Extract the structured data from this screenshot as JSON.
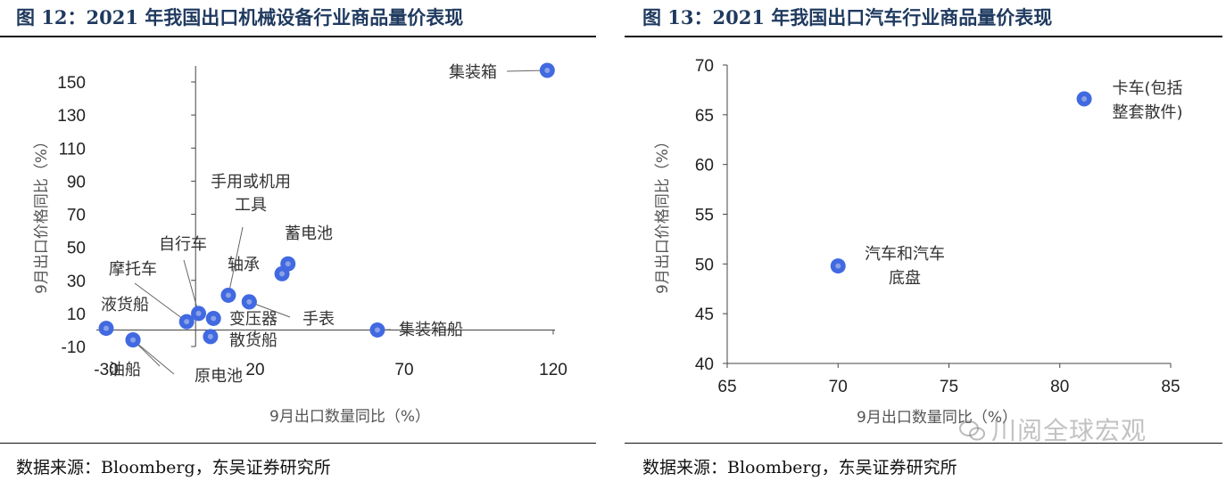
{
  "left": {
    "title": "图 12：2021 年我国出口机械设备行业商品量价表现",
    "source_prefix": "数据来源：",
    "source_text": "Bloomberg，东吴证券研究所"
  },
  "right": {
    "title": "图 13：2021 年我国出口汽车行业商品量价表现",
    "source_prefix": "数据来源：",
    "source_text": "Bloomberg，东吴证券研究所"
  },
  "watermark": "川阅全球宏观",
  "colors": {
    "point": "#4169e1",
    "point_core": "#8aa2e6",
    "axis": "#444444",
    "title": "#1f3a5f"
  },
  "chart_data": [
    {
      "type": "scatter",
      "title": "图 12：2021 年我国出口机械设备行业商品量价表现",
      "xlabel": "9月出口数量同比（%）",
      "ylabel": "9月出口价格同比（%）",
      "xlim": [
        -30,
        120
      ],
      "ylim": [
        -10,
        150
      ],
      "x_ticks": [
        -30,
        20,
        70,
        120
      ],
      "y_ticks": [
        -10,
        10,
        30,
        50,
        70,
        90,
        110,
        130,
        150
      ],
      "grid": false,
      "points": [
        {
          "label": "集装箱",
          "x": 118,
          "y": 157
        },
        {
          "label": "蓄电池",
          "x": 31,
          "y": 40
        },
        {
          "label": "",
          "x": 29,
          "y": 34
        },
        {
          "label": "手用或机用工具",
          "x": 11,
          "y": 21
        },
        {
          "label": "轴承",
          "x": 18,
          "y": 17
        },
        {
          "label": "自行车",
          "x": 1,
          "y": 10
        },
        {
          "label": "摩托车",
          "x": -3,
          "y": 5
        },
        {
          "label": "变压器",
          "x": 6,
          "y": 7
        },
        {
          "label": "手表",
          "x": 18,
          "y": 17
        },
        {
          "label": "液货船",
          "x": -30,
          "y": 1
        },
        {
          "label": "集装箱船",
          "x": 61,
          "y": 0
        },
        {
          "label": "散货船",
          "x": 5,
          "y": -4
        },
        {
          "label": "油船",
          "x": -21,
          "y": -6
        },
        {
          "label": "原电池",
          "x": -21,
          "y": -6
        }
      ]
    },
    {
      "type": "scatter",
      "title": "图 13：2021 年我国出口汽车行业商品量价表现",
      "xlabel": "9月出口数量同比（%）",
      "ylabel": "9月出口价格同比（%）",
      "xlim": [
        65,
        85
      ],
      "ylim": [
        40,
        70
      ],
      "x_ticks": [
        65,
        70,
        75,
        80,
        85
      ],
      "y_ticks": [
        40,
        45,
        50,
        55,
        60,
        65,
        70
      ],
      "grid": false,
      "points": [
        {
          "label": "卡车(包括整套散件)",
          "x": 81.1,
          "y": 66.6
        },
        {
          "label": "汽车和汽车底盘",
          "x": 70,
          "y": 49.8
        }
      ]
    }
  ]
}
